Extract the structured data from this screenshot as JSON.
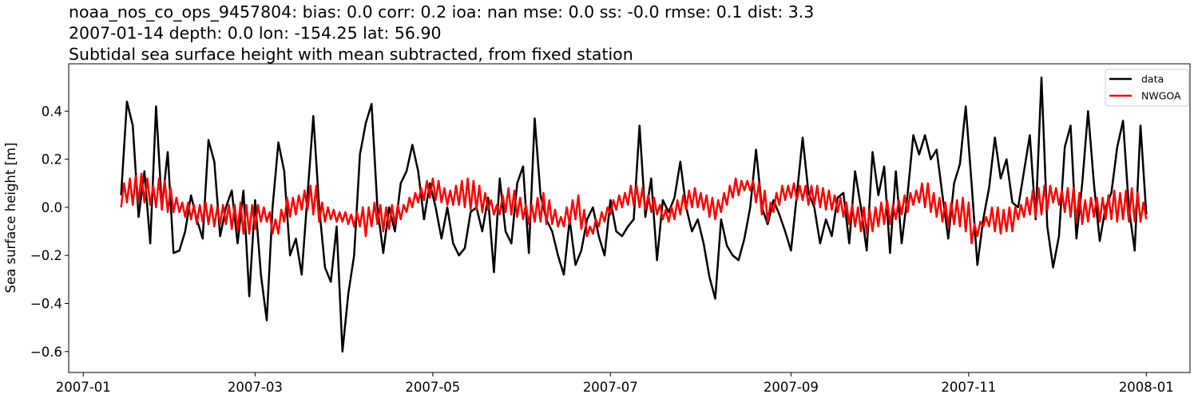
{
  "chart_data": {
    "type": "line",
    "title_lines": [
      "noaa_nos_co_ops_9457804: bias: 0.0  corr: 0.2  ioa: nan  mse: 0.0  ss: -0.0  rmse: 0.1  dist: 3.3",
      "2007-01-14 depth: 0.0 lon: -154.25 lat: 56.90",
      "Subtidal sea surface height with mean subtracted, from fixed station"
    ],
    "xlabel": "",
    "ylabel": "Sea surface height [m]",
    "xlim": [
      "2006-12-27",
      "2008-01-16"
    ],
    "ylim": [
      -0.687,
      0.597
    ],
    "x_ticks": [
      {
        "date": "2007-01-01",
        "label": "2007-01"
      },
      {
        "date": "2007-03-01",
        "label": "2007-03"
      },
      {
        "date": "2007-05-01",
        "label": "2007-05"
      },
      {
        "date": "2007-07-01",
        "label": "2007-07"
      },
      {
        "date": "2007-09-01",
        "label": "2007-09"
      },
      {
        "date": "2007-11-01",
        "label": "2007-11"
      },
      {
        "date": "2008-01-01",
        "label": "2008-01"
      }
    ],
    "y_ticks": [
      {
        "value": -0.6,
        "label": "−0.6"
      },
      {
        "value": -0.4,
        "label": "−0.4"
      },
      {
        "value": -0.2,
        "label": "−0.2"
      },
      {
        "value": 0.0,
        "label": "0.0"
      },
      {
        "value": 0.2,
        "label": "0.2"
      },
      {
        "value": 0.4,
        "label": "0.4"
      }
    ],
    "grid": false,
    "legend_position": "top-right",
    "series": [
      {
        "name": "data",
        "color": "#000000",
        "x_start": "2007-01-14",
        "interval_days": 2,
        "values": [
          0.05,
          0.44,
          0.34,
          -0.04,
          0.15,
          -0.15,
          0.42,
          0.0,
          0.23,
          -0.19,
          -0.18,
          -0.1,
          0.05,
          -0.05,
          -0.13,
          0.28,
          0.19,
          -0.12,
          0.0,
          0.07,
          -0.15,
          0.07,
          -0.37,
          0.03,
          -0.28,
          -0.47,
          0.0,
          0.27,
          0.15,
          -0.2,
          -0.13,
          -0.28,
          0.05,
          0.38,
          0.0,
          -0.25,
          -0.31,
          -0.08,
          -0.6,
          -0.36,
          -0.2,
          0.22,
          0.35,
          0.43,
          0.0,
          -0.19,
          0.0,
          -0.1,
          0.1,
          0.15,
          0.26,
          0.15,
          -0.05,
          0.1,
          0.0,
          -0.13,
          0.0,
          -0.15,
          -0.2,
          -0.17,
          -0.02,
          0.0,
          -0.1,
          0.04,
          -0.27,
          0.12,
          -0.1,
          -0.15,
          0.1,
          0.17,
          -0.19,
          0.37,
          0.05,
          -0.05,
          -0.1,
          -0.2,
          -0.28,
          -0.05,
          -0.24,
          -0.18,
          -0.05,
          0.0,
          -0.12,
          -0.2,
          0.03,
          -0.1,
          -0.12,
          -0.08,
          -0.05,
          0.34,
          -0.04,
          0.12,
          -0.22,
          0.03,
          -0.02,
          0.04,
          0.19,
          0.0,
          -0.1,
          -0.05,
          -0.15,
          -0.29,
          -0.38,
          -0.05,
          -0.16,
          -0.2,
          -0.22,
          -0.13,
          0.0,
          0.24,
          0.0,
          -0.07,
          0.03,
          -0.03,
          -0.1,
          -0.18,
          0.05,
          0.29,
          0.06,
          0.0,
          -0.15,
          -0.05,
          -0.12,
          0.04,
          0.06,
          -0.15,
          0.15,
          0.0,
          -0.18,
          0.23,
          0.05,
          0.17,
          -0.19,
          0.15,
          -0.15,
          0.05,
          0.3,
          0.22,
          0.3,
          0.2,
          0.24,
          0.05,
          -0.13,
          0.1,
          0.18,
          0.42,
          0.1,
          -0.24,
          -0.05,
          0.08,
          0.29,
          0.12,
          0.2,
          0.02,
          0.0,
          0.15,
          0.3,
          -0.05,
          0.54,
          -0.08,
          -0.25,
          -0.12,
          0.25,
          0.34,
          -0.13,
          0.1,
          0.4,
          0.1,
          -0.14,
          0.0,
          0.06,
          0.25,
          0.36,
          0.0,
          -0.18,
          0.34,
          -0.03
        ]
      },
      {
        "name": "NWGOA",
        "color": "#ff0000",
        "x_start": "2007-01-14",
        "interval_days": 1,
        "values": [
          0.0,
          0.1,
          0.02,
          0.12,
          0.01,
          0.13,
          0.02,
          0.14,
          0.02,
          0.12,
          0.01,
          0.09,
          0.0,
          0.12,
          -0.01,
          0.11,
          -0.02,
          0.08,
          -0.02,
          0.04,
          -0.02,
          0.02,
          -0.04,
          0.02,
          -0.05,
          0.01,
          -0.07,
          0.01,
          -0.06,
          0.02,
          -0.07,
          0.01,
          -0.08,
          0.0,
          -0.07,
          0.01,
          -0.07,
          0.01,
          -0.09,
          0.01,
          -0.1,
          0.02,
          -0.11,
          0.01,
          -0.11,
          0.01,
          -0.09,
          0.01,
          -0.06,
          0.0,
          -0.06,
          -0.02,
          -0.11,
          -0.05,
          -0.11,
          -0.01,
          -0.06,
          0.04,
          -0.04,
          0.04,
          -0.03,
          0.05,
          -0.01,
          0.07,
          -0.01,
          0.09,
          -0.03,
          0.09,
          -0.06,
          0.02,
          -0.06,
          0.0,
          -0.05,
          -0.01,
          -0.06,
          -0.02,
          -0.06,
          -0.02,
          -0.07,
          -0.03,
          -0.08,
          -0.02,
          -0.08,
          0.0,
          -0.12,
          0.0,
          -0.08,
          0.02,
          -0.07,
          0.01,
          -0.1,
          0.0,
          -0.09,
          0.01,
          -0.07,
          0.01,
          -0.05,
          0.01,
          -0.02,
          0.04,
          0.0,
          0.06,
          0.02,
          0.08,
          0.03,
          0.11,
          0.04,
          0.12,
          0.03,
          0.11,
          0.02,
          0.08,
          0.01,
          0.07,
          0.01,
          0.09,
          0.01,
          0.11,
          0.0,
          0.12,
          -0.01,
          0.11,
          -0.01,
          0.09,
          -0.02,
          0.06,
          -0.01,
          0.03,
          -0.03,
          0.01,
          -0.03,
          0.05,
          -0.02,
          0.08,
          -0.03,
          0.07,
          -0.04,
          0.04,
          -0.05,
          0.01,
          -0.07,
          0.01,
          -0.06,
          0.04,
          -0.06,
          0.06,
          -0.07,
          0.03,
          -0.07,
          -0.01,
          -0.08,
          -0.04,
          -0.08,
          0.0,
          -0.07,
          0.03,
          -0.05,
          0.05,
          -0.09,
          -0.01,
          -0.12,
          -0.08,
          -0.11,
          -0.05,
          -0.08,
          -0.02,
          -0.06,
          0.0,
          -0.03,
          0.03,
          -0.01,
          0.05,
          0.0,
          0.06,
          0.01,
          0.09,
          0.01,
          0.09,
          0.0,
          0.08,
          -0.01,
          0.05,
          -0.02,
          0.04,
          -0.03,
          0.01,
          -0.05,
          -0.01,
          -0.06,
          0.0,
          -0.05,
          0.03,
          -0.03,
          0.05,
          -0.01,
          0.07,
          0.0,
          0.08,
          0.0,
          0.06,
          -0.01,
          0.05,
          -0.04,
          0.04,
          -0.05,
          0.03,
          -0.02,
          0.06,
          0.01,
          0.09,
          0.04,
          0.12,
          0.05,
          0.11,
          0.07,
          0.11,
          0.07,
          0.11,
          0.02,
          0.1,
          -0.03,
          0.07,
          -0.06,
          0.02,
          -0.02,
          0.06,
          0.01,
          0.09,
          0.03,
          0.09,
          0.04,
          0.1,
          0.03,
          0.09,
          0.03,
          0.09,
          0.01,
          0.09,
          0.01,
          0.09,
          0.0,
          0.08,
          -0.01,
          0.07,
          -0.01,
          0.05,
          -0.02,
          0.04,
          -0.04,
          0.02,
          -0.07,
          0.01,
          -0.08,
          0.0,
          -0.1,
          0.0,
          -0.11,
          -0.01,
          -0.1,
          0.0,
          -0.08,
          0.02,
          -0.07,
          0.03,
          -0.07,
          0.01,
          -0.05,
          0.03,
          -0.03,
          0.05,
          -0.02,
          0.06,
          0.01,
          0.07,
          0.02,
          0.1,
          0.0,
          0.1,
          -0.02,
          0.06,
          -0.04,
          0.04,
          -0.06,
          0.02,
          -0.08,
          0.02,
          -0.07,
          0.03,
          -0.08,
          0.04,
          -0.1,
          0.02,
          -0.15,
          -0.07,
          -0.12,
          -0.06,
          -0.08,
          -0.04,
          -0.08,
          0.0,
          -0.1,
          0.0,
          -0.11,
          -0.01,
          -0.1,
          0.0,
          -0.1,
          0.0,
          -0.05,
          0.01,
          -0.04,
          0.04,
          -0.03,
          0.07,
          -0.04,
          0.08,
          -0.03,
          0.09,
          -0.01,
          0.09,
          0.02,
          0.08,
          0.01,
          0.07,
          -0.02,
          0.08,
          -0.04,
          0.08,
          -0.06,
          0.06,
          -0.07,
          0.03,
          -0.06,
          0.04,
          -0.04,
          0.04,
          -0.06,
          0.04,
          -0.05,
          0.05,
          -0.05,
          0.07,
          -0.06,
          0.06,
          -0.05,
          0.07,
          -0.06,
          0.08,
          -0.06,
          0.06,
          -0.06,
          0.02,
          -0.05
        ]
      }
    ]
  }
}
